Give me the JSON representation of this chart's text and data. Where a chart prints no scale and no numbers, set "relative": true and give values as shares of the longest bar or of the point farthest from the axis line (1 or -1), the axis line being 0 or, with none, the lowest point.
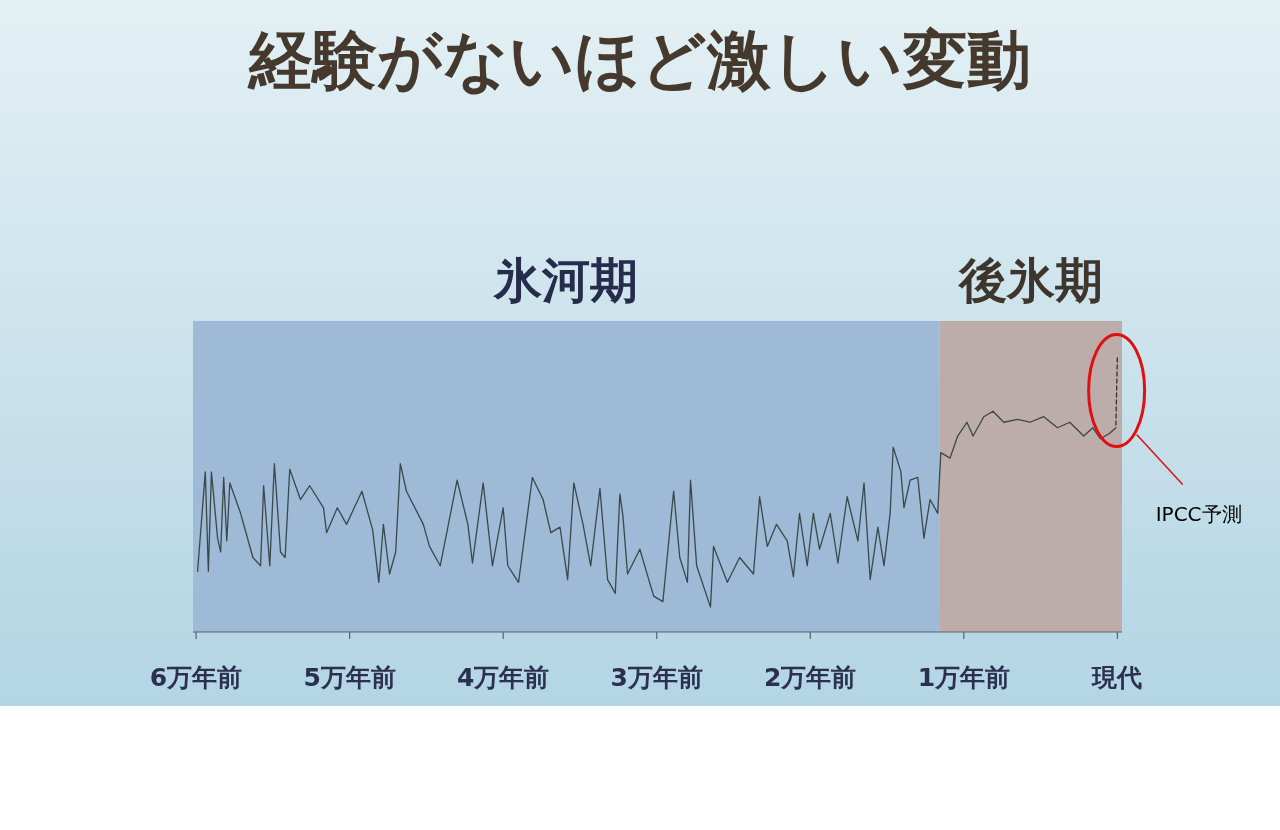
{
  "chart_data": {
    "type": "line",
    "title": "経験がないほど激しい変動",
    "relative": true,
    "xlim": [
      6.02,
      -0.03
    ],
    "xticks": [
      {
        "value": 6,
        "label": "6万年前"
      },
      {
        "value": 5,
        "label": "5万年前"
      },
      {
        "value": 4,
        "label": "4万年前"
      },
      {
        "value": 3,
        "label": "3万年前"
      },
      {
        "value": 2,
        "label": "2万年前"
      },
      {
        "value": 1,
        "label": "1万年前"
      },
      {
        "value": 0,
        "label": "現代"
      }
    ],
    "bands": [
      {
        "axis": "x",
        "from": 6.02,
        "to": 1.16,
        "label": "氷河期",
        "color": "#9fbad6"
      },
      {
        "axis": "x",
        "from": 1.16,
        "to": -0.03,
        "label": "後氷期",
        "color": "#bcadab"
      }
    ],
    "series": [
      {
        "color": "#3a4848",
        "line_style": "solid",
        "x": [
          5.99,
          5.94,
          5.92,
          5.9,
          5.86,
          5.84,
          5.82,
          5.8,
          5.78,
          5.71,
          5.63,
          5.58,
          5.56,
          5.52,
          5.49,
          5.45,
          5.42,
          5.39,
          5.32,
          5.26,
          5.17,
          5.15,
          5.08,
          5.02,
          4.92,
          4.85,
          4.81,
          4.78,
          4.74,
          4.7,
          4.67,
          4.63,
          4.52,
          4.48,
          4.41,
          4.3,
          4.23,
          4.2,
          4.13,
          4.07,
          4.0,
          3.97,
          3.9,
          3.81,
          3.74,
          3.69,
          3.63,
          3.58,
          3.54,
          3.48,
          3.43,
          3.37,
          3.32,
          3.27,
          3.24,
          3.22,
          3.19,
          3.11,
          3.02,
          2.96,
          2.89,
          2.85,
          2.8,
          2.78,
          2.74,
          2.65,
          2.63,
          2.54,
          2.46,
          2.37,
          2.33,
          2.28,
          2.22,
          2.15,
          2.11,
          2.07,
          2.02,
          1.98,
          1.94,
          1.87,
          1.82,
          1.76,
          1.69,
          1.65,
          1.61,
          1.56,
          1.52,
          1.48,
          1.46,
          1.41,
          1.39,
          1.35,
          1.3,
          1.26,
          1.22,
          1.17,
          1.15,
          1.09,
          1.04,
          0.98,
          0.94,
          0.87,
          0.81,
          0.74,
          0.65,
          0.57,
          0.48,
          0.39,
          0.31,
          0.22,
          0.16,
          0.11,
          0.05,
          0.01
        ],
        "values": [
          0.22,
          0.58,
          0.22,
          0.58,
          0.34,
          0.29,
          0.56,
          0.33,
          0.54,
          0.43,
          0.27,
          0.24,
          0.53,
          0.24,
          0.61,
          0.29,
          0.27,
          0.59,
          0.48,
          0.53,
          0.45,
          0.36,
          0.45,
          0.39,
          0.51,
          0.37,
          0.18,
          0.39,
          0.21,
          0.29,
          0.61,
          0.51,
          0.39,
          0.31,
          0.24,
          0.55,
          0.39,
          0.25,
          0.54,
          0.24,
          0.45,
          0.24,
          0.18,
          0.56,
          0.48,
          0.36,
          0.38,
          0.19,
          0.54,
          0.39,
          0.24,
          0.52,
          0.19,
          0.14,
          0.5,
          0.42,
          0.21,
          0.3,
          0.13,
          0.11,
          0.51,
          0.27,
          0.18,
          0.55,
          0.24,
          0.09,
          0.31,
          0.18,
          0.27,
          0.21,
          0.49,
          0.31,
          0.39,
          0.33,
          0.2,
          0.43,
          0.24,
          0.43,
          0.3,
          0.43,
          0.25,
          0.49,
          0.33,
          0.54,
          0.19,
          0.38,
          0.24,
          0.43,
          0.67,
          0.58,
          0.45,
          0.55,
          0.56,
          0.34,
          0.48,
          0.43,
          0.65,
          0.63,
          0.71,
          0.76,
          0.71,
          0.78,
          0.8,
          0.76,
          0.77,
          0.76,
          0.78,
          0.74,
          0.76,
          0.71,
          0.74,
          0.7,
          0.72,
          0.74
        ]
      },
      {
        "color": "#333333",
        "line_style": "dashed",
        "x": [
          0.01,
          0
        ],
        "values": [
          0.75,
          1.0
        ]
      }
    ],
    "annotations": [
      "IPCC予測"
    ]
  }
}
